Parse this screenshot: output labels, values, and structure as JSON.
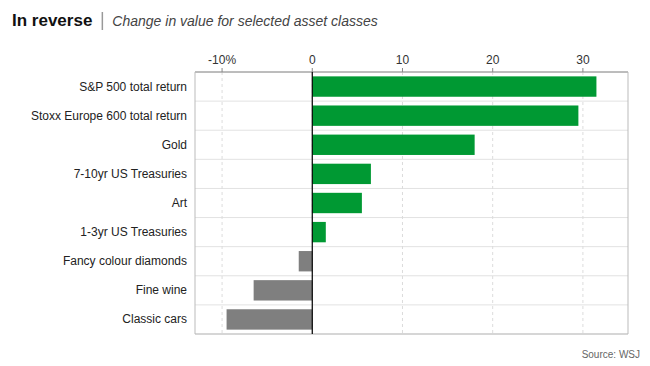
{
  "chart_data": {
    "type": "bar",
    "orientation": "horizontal",
    "title": "In reverse",
    "subtitle": "Change in value for selected asset classes",
    "annotations": [
      "Source: WSJ"
    ],
    "categories": [
      "S&P 500 total return",
      "Stoxx Europe 600 total return",
      "Gold",
      "7-10yr US Treasuries",
      "Art",
      "1-3yr US Treasuries",
      "Fancy colour diamonds",
      "Fine wine",
      "Classic cars"
    ],
    "values": [
      31.5,
      29.5,
      18.0,
      6.5,
      5.5,
      1.5,
      -1.5,
      -6.5,
      -9.5
    ],
    "colors": [
      "#009933",
      "#009933",
      "#009933",
      "#009933",
      "#009933",
      "#009933",
      "#7f7f7f",
      "#7f7f7f",
      "#7f7f7f"
    ],
    "xlim": [
      -13,
      35
    ],
    "xticks": [
      {
        "value": -10,
        "label": "-10%"
      },
      0,
      10,
      20,
      30
    ],
    "grid": true
  }
}
